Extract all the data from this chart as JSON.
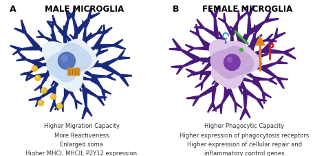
{
  "panel_A_bg": "#dce9f5",
  "panel_B_bg": "#e5d8e8",
  "panel_A_title": "MALE MICROGLIA",
  "panel_B_title": "FEMALE MICROGLIA",
  "label_A": "A",
  "label_B": "B",
  "title_fontsize": 8.5,
  "label_fontsize": 9,
  "text_fontsize": 6.0,
  "panel_A_text": "Higher Migration Capacity\nMore Reactiveness\nEnlarged soma\nHigher MHCI, MHCII, P2Y12 expression",
  "panel_B_text": "Higher Phagocytic Capacity\nHigher expression of phagocytosis receptors\nHigher expression of cellular repair and\ninflammatory control genes",
  "male_dendrite_dark": "#1a2a7a",
  "male_dendrite_mid": "#2a3d9a",
  "male_body_light": "#c8daf0",
  "male_body_white": "#e8f0f8",
  "male_nucleus_color": "#4a6ab8",
  "male_organelle_color": "#d4922a",
  "male_organelle_dark": "#a86e10",
  "male_dot_color": "#e8b830",
  "female_dendrite_dark": "#4a1a7a",
  "female_dendrite_mid": "#7a3aaa",
  "female_body_light": "#c8a8d8",
  "female_body_white": "#dfc8e8",
  "female_nucleus_color": "#7a3aaa",
  "fig_width": 4.74,
  "fig_height": 2.27,
  "dpi": 100
}
